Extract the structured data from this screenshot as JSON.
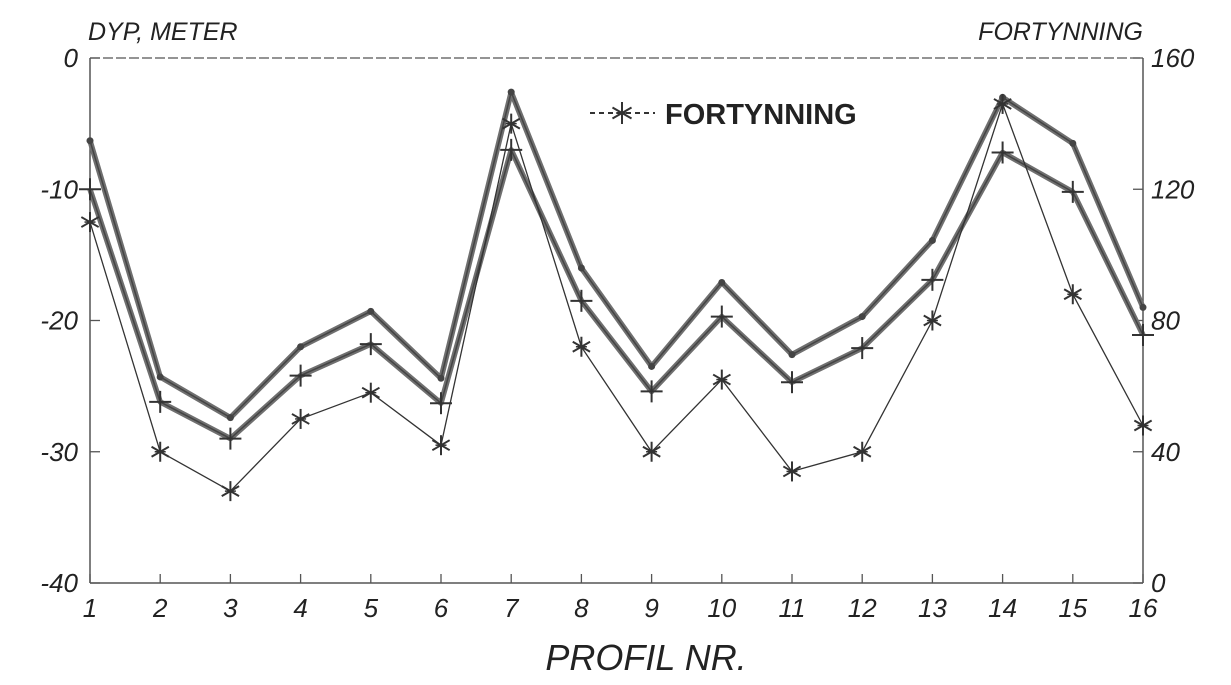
{
  "chart_data": {
    "type": "line",
    "left_axis_title": "DYP, METER",
    "right_axis_title": "FORTYNNING",
    "xlabel": "PROFIL NR.",
    "x": [
      1,
      2,
      3,
      4,
      5,
      6,
      7,
      8,
      9,
      10,
      11,
      12,
      13,
      14,
      15,
      16
    ],
    "x_tick_labels": [
      "1",
      "2",
      "3",
      "4",
      "5",
      "6",
      "7",
      "8",
      "9",
      "10",
      "11",
      "12",
      "13",
      "14",
      "15",
      "16"
    ],
    "ylim_left": [
      -40,
      0
    ],
    "ylim_right": [
      0,
      160
    ],
    "y_left_ticks": [
      0,
      -10,
      -20,
      -30,
      -40
    ],
    "y_left_tick_labels": [
      "0",
      "-10",
      "-20",
      "-30",
      "-40"
    ],
    "y_right_ticks": [
      160,
      120,
      80,
      40,
      0
    ],
    "y_right_tick_labels": [
      "160",
      "120",
      "80",
      "40",
      "0"
    ],
    "grid": false,
    "legend": {
      "placement": "top-center",
      "entries": [
        "FORTYNNING"
      ]
    },
    "series": [
      {
        "axis": "left",
        "marker": "dot",
        "values": [
          -6.3,
          -24.3,
          -27.4,
          -22.0,
          -19.3,
          -24.4,
          -2.6,
          -16.0,
          -23.5,
          -17.1,
          -22.6,
          -19.7,
          -13.9,
          -3.0,
          -6.5,
          -19.0
        ]
      },
      {
        "axis": "left",
        "marker": "plus",
        "values": [
          -10.0,
          -26.2,
          -29.0,
          -24.2,
          -21.8,
          -26.3,
          -7.0,
          -18.5,
          -25.4,
          -19.7,
          -24.7,
          -22.1,
          -16.9,
          -7.2,
          -10.2,
          -21.1
        ]
      },
      {
        "name": "FORTYNNING",
        "axis": "right",
        "marker": "asterisk",
        "values": [
          110,
          40,
          28,
          50,
          58,
          42,
          140,
          72,
          40,
          62,
          34,
          40,
          80,
          146,
          88,
          48
        ]
      }
    ]
  },
  "colors": {
    "background": "#ffffff",
    "axis": "#555555",
    "thick_line": "#6f6f6f",
    "thick_line_core": "#444444",
    "thin_line": "#333333",
    "text": "#222222"
  }
}
